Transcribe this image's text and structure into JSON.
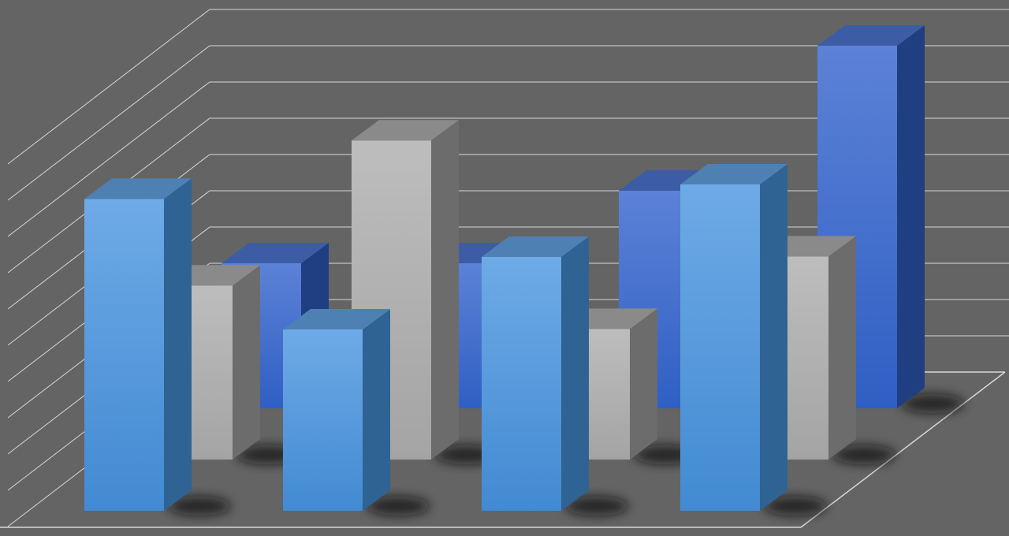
{
  "chart_data": {
    "type": "bar",
    "variant": "3d-grouped-depth",
    "title": "",
    "xlabel": "",
    "ylabel": "",
    "ylim": [
      0,
      10
    ],
    "grid": true,
    "categories": [
      "",
      "",
      "",
      ""
    ],
    "series": [
      {
        "color": "#5a9fe0",
        "values": [
          8.6,
          5.0,
          7.0,
          9.0
        ]
      },
      {
        "color": "#b4b4b4",
        "values": [
          4.8,
          8.8,
          3.6,
          5.6
        ]
      },
      {
        "color": "#4370d2",
        "values": [
          4.0,
          4.0,
          6.0,
          10.0
        ]
      }
    ],
    "colors": {
      "background": "#646464",
      "gridline": "#d8d8d8"
    }
  }
}
